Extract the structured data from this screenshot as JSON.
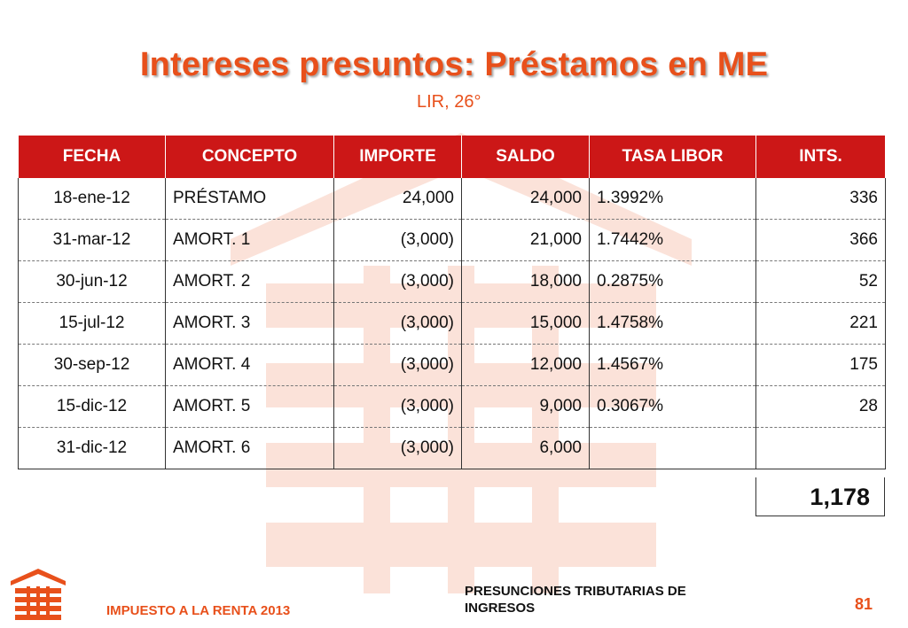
{
  "slide": {
    "title": "Intereses presuntos: Préstamos en ME",
    "subtitle": "LIR, 26°"
  },
  "table": {
    "headers": [
      "FECHA",
      "CONCEPTO",
      "IMPORTE",
      "SALDO",
      "TASA LIBOR",
      "INTS."
    ],
    "rows": [
      {
        "fecha": "18-ene-12",
        "concepto": "PRÉSTAMO",
        "importe": "24,000",
        "saldo": "24,000",
        "tasa": "1.3992%",
        "ints": "336"
      },
      {
        "fecha": "31-mar-12",
        "concepto": "AMORT. 1",
        "importe": "(3,000)",
        "saldo": "21,000",
        "tasa": "1.7442%",
        "ints": "366"
      },
      {
        "fecha": "30-jun-12",
        "concepto": "AMORT. 2",
        "importe": "(3,000)",
        "saldo": "18,000",
        "tasa": "0.2875%",
        "ints": "52"
      },
      {
        "fecha": "15-jul-12",
        "concepto": "AMORT. 3",
        "importe": "(3,000)",
        "saldo": "15,000",
        "tasa": "1.4758%",
        "ints": "221"
      },
      {
        "fecha": "30-sep-12",
        "concepto": "AMORT. 4",
        "importe": "(3,000)",
        "saldo": "12,000",
        "tasa": "1.4567%",
        "ints": "175"
      },
      {
        "fecha": "15-dic-12",
        "concepto": "AMORT. 5",
        "importe": "(3,000)",
        "saldo": "9,000",
        "tasa": "0.3067%",
        "ints": "28"
      },
      {
        "fecha": "31-dic-12",
        "concepto": "AMORT. 6",
        "importe": "(3,000)",
        "saldo": "6,000",
        "tasa": "",
        "ints": ""
      }
    ],
    "total": "1,178"
  },
  "footer": {
    "left": "IMPUESTO A LA RENTA 2013",
    "middle": "PRESUNCIONES TRIBUTARIAS DE INGRESOS",
    "page_number": "81"
  },
  "colors": {
    "accent": "#e8501b",
    "header_bg": "#cc1717"
  },
  "icons": [
    "building-logo-icon",
    "building-watermark-icon"
  ]
}
